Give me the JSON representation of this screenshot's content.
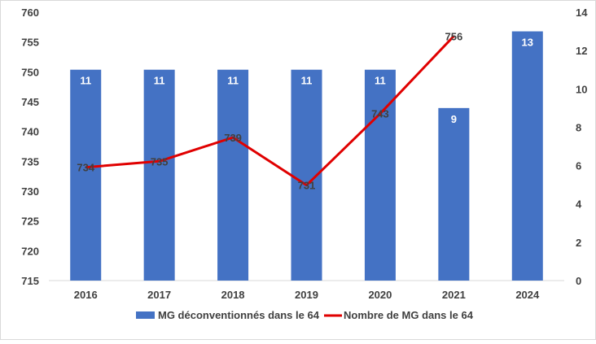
{
  "chart_data": {
    "type": "bar",
    "categories": [
      "2016",
      "2017",
      "2018",
      "2019",
      "2020",
      "2021",
      "2024"
    ],
    "series": [
      {
        "name": "MG déconventionnés dans le 64",
        "type": "bar",
        "axis": "right",
        "values": [
          11,
          11,
          11,
          11,
          11,
          9,
          13
        ],
        "color": "#4472C4"
      },
      {
        "name": "Nombre de MG dans le 64",
        "type": "line",
        "axis": "left",
        "values": [
          734,
          735,
          739,
          731,
          743,
          756,
          null
        ],
        "color": "#E00000"
      }
    ],
    "y_left": {
      "range": [
        715,
        760
      ],
      "ticks": [
        "715",
        "720",
        "725",
        "730",
        "735",
        "740",
        "745",
        "750",
        "755",
        "760"
      ]
    },
    "y_right": {
      "range": [
        0,
        14
      ],
      "ticks": [
        "0",
        "2",
        "4",
        "6",
        "8",
        "10",
        "12",
        "14"
      ]
    },
    "grid": false,
    "legend_position": "bottom"
  }
}
